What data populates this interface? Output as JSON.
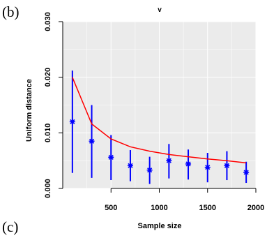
{
  "panel_labels": {
    "top": "(b)",
    "bottom": "(c)"
  },
  "colors": {
    "panel_background": "#ebebeb",
    "grid": "#ffffff",
    "points": "#0000ff",
    "curve": "#ff0000",
    "axis": "#000000"
  },
  "chart_data": {
    "type": "scatter",
    "title": "v",
    "xlabel": "Sample size",
    "ylabel": "Uniform distance",
    "xlim": [
      0,
      2000
    ],
    "ylim": [
      0,
      0.03
    ],
    "grid": true,
    "x_ticks": [
      500,
      1000,
      1500,
      2000
    ],
    "x_tick_labels": [
      "500",
      "1000",
      "1500",
      "2000"
    ],
    "y_ticks": [
      0,
      0.01,
      0.02,
      0.03
    ],
    "y_tick_labels": [
      "0.000",
      "0.010",
      "0.020",
      "0.030"
    ],
    "series": [
      {
        "kind": "points_with_error_bars",
        "marker": "*",
        "x": [
          100,
          300,
          500,
          700,
          900,
          1100,
          1300,
          1500,
          1700,
          1900
        ],
        "y": [
          0.012,
          0.0085,
          0.0056,
          0.0041,
          0.0033,
          0.005,
          0.0044,
          0.0038,
          0.0041,
          0.0029
        ],
        "y_low": [
          0.0028,
          0.0019,
          0.0015,
          0.0013,
          0.0008,
          0.0018,
          0.0016,
          0.0011,
          0.0015,
          0.001
        ],
        "y_high": [
          0.0212,
          0.015,
          0.0096,
          0.0069,
          0.0057,
          0.008,
          0.007,
          0.0064,
          0.0067,
          0.0048
        ]
      },
      {
        "kind": "line",
        "x": [
          100,
          300,
          500,
          700,
          900,
          1100,
          1300,
          1500,
          1700,
          1900
        ],
        "y": [
          0.02,
          0.0116,
          0.0089,
          0.0075,
          0.0067,
          0.0061,
          0.0057,
          0.0053,
          0.005,
          0.0046
        ]
      }
    ]
  }
}
